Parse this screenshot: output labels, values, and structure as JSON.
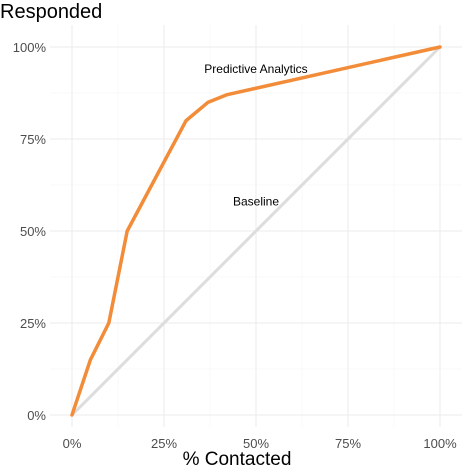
{
  "chart_data": {
    "type": "line",
    "title": "",
    "xlabel": "% Contacted",
    "ylabel": "Responded",
    "xlim": [
      0,
      100
    ],
    "ylim": [
      0,
      100
    ],
    "grid": true,
    "x_ticks": [
      0,
      25,
      50,
      75,
      100
    ],
    "x_tick_labels": [
      "0%",
      "25%",
      "50%",
      "75%",
      "100%"
    ],
    "y_ticks": [
      0,
      25,
      50,
      75,
      100
    ],
    "y_tick_labels": [
      "0%",
      "25%",
      "50%",
      "75%",
      "100%"
    ],
    "series": [
      {
        "name": "Predictive Analytics",
        "color": "#F28C38",
        "x": [
          0,
          5,
          10,
          15,
          31,
          37,
          42,
          100
        ],
        "y": [
          0,
          15,
          25,
          50,
          80,
          85,
          87,
          100
        ]
      },
      {
        "name": "Baseline",
        "color": "#DDDDDD",
        "x": [
          0,
          100
        ],
        "y": [
          0,
          100
        ]
      }
    ],
    "annotations": [
      {
        "text": "Predictive Analytics",
        "x": 50,
        "y": 94
      },
      {
        "text": "Baseline",
        "x": 50,
        "y": 58
      }
    ]
  }
}
